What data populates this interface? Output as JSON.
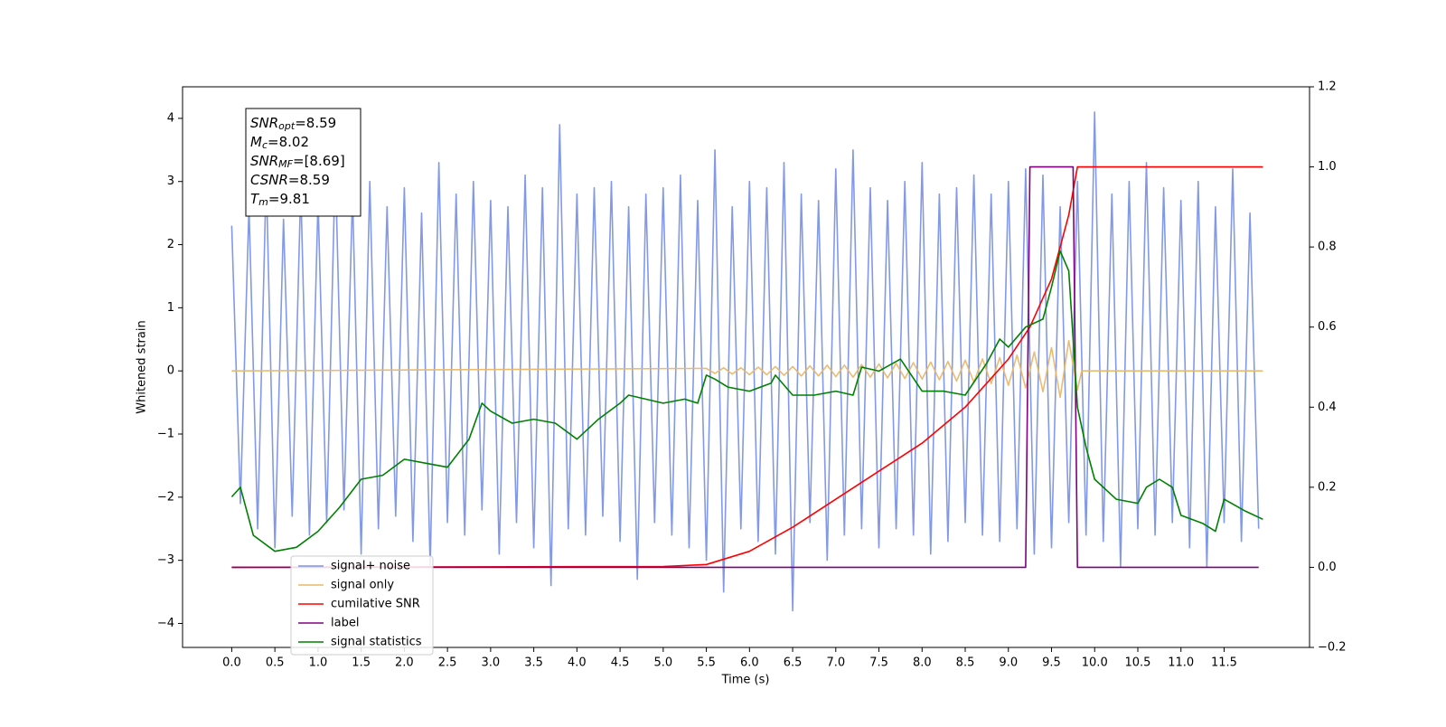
{
  "chart_data": {
    "type": "line",
    "xlabel": "Time (s)",
    "ylabel": "Whitened strain",
    "xlim": [
      -0.57,
      12.49
    ],
    "ylim": [
      -4.38,
      4.5
    ],
    "y2lim": [
      -0.2,
      1.2
    ],
    "xticks": [
      {
        "value": 0,
        "label": "0.0"
      },
      0.5,
      {
        "value": 1,
        "label": "1.0"
      },
      1.5,
      {
        "value": 2,
        "label": "2.0"
      },
      2.5,
      {
        "value": 3,
        "label": "3.0"
      },
      3.5,
      {
        "value": 4,
        "label": "4.0"
      },
      4.5,
      {
        "value": 5,
        "label": "5.0"
      },
      5.5,
      {
        "value": 6,
        "label": "6.0"
      },
      6.5,
      {
        "value": 7,
        "label": "7.0"
      },
      7.5,
      {
        "value": 8,
        "label": "8.0"
      },
      8.5,
      {
        "value": 9,
        "label": "9.0"
      },
      9.5,
      {
        "value": 10,
        "label": "10.0"
      },
      10.5,
      {
        "value": 11,
        "label": "11.0"
      },
      11.5
    ],
    "yticks": [
      {
        "value": -4,
        "label": "−4"
      },
      {
        "value": -3,
        "label": "−3"
      },
      {
        "value": -2,
        "label": "−2"
      },
      {
        "value": -1,
        "label": "−1"
      },
      0,
      1,
      2,
      3,
      4
    ],
    "y2ticks": [
      {
        "value": -0.2,
        "label": "−0.2"
      },
      {
        "value": 0,
        "label": "0.0"
      },
      0.2,
      0.4,
      0.6,
      0.8,
      {
        "value": 1,
        "label": "1.0"
      },
      1.2
    ],
    "annotations": [
      {
        "symbol": "SNR",
        "subscript": "opt",
        "text": "=8.59"
      },
      {
        "symbol": "M",
        "subscript": "c",
        "text": "=8.02"
      },
      {
        "symbol": "SNR",
        "subscript": "MF",
        "text": "=[8.69]"
      },
      {
        "symbol": "CSNR",
        "text": "=8.59"
      },
      {
        "symbol": "T",
        "subscript": "m",
        "text": "=9.81"
      }
    ],
    "series": [
      {
        "name": "signal+ noise",
        "color": "#7b94e6",
        "axis": "y",
        "x": [
          0,
          0.1,
          0.2,
          0.3,
          0.4,
          0.5,
          0.6,
          0.7,
          0.8,
          0.9,
          1,
          1.1,
          1.2,
          1.3,
          1.4,
          1.5,
          1.6,
          1.7,
          1.8,
          1.9,
          2,
          2.1,
          2.2,
          2.3,
          2.4,
          2.5,
          2.6,
          2.7,
          2.8,
          2.9,
          3,
          3.1,
          3.2,
          3.3,
          3.4,
          3.5,
          3.6,
          3.7,
          3.8,
          3.9,
          4,
          4.1,
          4.2,
          4.3,
          4.4,
          4.5,
          4.6,
          4.7,
          4.8,
          4.9,
          5,
          5.1,
          5.2,
          5.3,
          5.4,
          5.5,
          5.6,
          5.7,
          5.8,
          5.9,
          6,
          6.1,
          6.2,
          6.3,
          6.4,
          6.5,
          6.6,
          6.7,
          6.8,
          6.9,
          7,
          7.1,
          7.2,
          7.3,
          7.4,
          7.5,
          7.6,
          7.7,
          7.8,
          7.9,
          8,
          8.1,
          8.2,
          8.3,
          8.4,
          8.5,
          8.6,
          8.7,
          8.8,
          8.9,
          9,
          9.1,
          9.2,
          9.3,
          9.4,
          9.5,
          9.6,
          9.7,
          9.8,
          9.9,
          10,
          10.1,
          10.2,
          10.3,
          10.4,
          10.5,
          10.6,
          10.7,
          10.8,
          10.9,
          11,
          11.1,
          11.2,
          11.3,
          11.4,
          11.5,
          11.6,
          11.7,
          11.8,
          11.9
        ],
        "values": [
          2.3,
          -2.1,
          2.6,
          -2.5,
          3.1,
          -2.8,
          2.4,
          -2.3,
          2.9,
          -2.6,
          2.7,
          -2.4,
          3.3,
          -2.2,
          2.8,
          -2.9,
          3.0,
          -2.5,
          2.6,
          -2.3,
          2.9,
          -2.7,
          2.5,
          -3.1,
          3.3,
          -2.4,
          2.8,
          -2.6,
          3.0,
          -2.2,
          2.7,
          -2.9,
          2.6,
          -2.4,
          3.1,
          -2.8,
          2.9,
          -3.4,
          3.9,
          -2.5,
          2.8,
          -2.6,
          2.9,
          -2.3,
          3.0,
          -2.7,
          2.6,
          -3.3,
          2.8,
          -2.4,
          2.9,
          -2.6,
          3.1,
          -2.8,
          2.7,
          -3.0,
          3.5,
          -3.5,
          2.6,
          -2.5,
          3.0,
          -2.7,
          2.9,
          -2.9,
          3.3,
          -3.8,
          2.8,
          -2.4,
          2.7,
          -3.0,
          3.2,
          -2.6,
          3.5,
          -2.5,
          2.9,
          -2.8,
          2.7,
          -2.5,
          3.0,
          -2.6,
          3.3,
          -2.9,
          2.8,
          -2.7,
          2.9,
          -2.4,
          3.1,
          -2.6,
          2.8,
          -2.7,
          3.0,
          -2.5,
          3.2,
          -2.9,
          3.1,
          -2.8,
          2.6,
          -2.4,
          3.0,
          -2.6,
          4.1,
          -2.7,
          2.8,
          -3.1,
          3.0,
          -2.5,
          3.3,
          -2.6,
          2.9,
          -2.4,
          2.7,
          -2.8,
          3.0,
          -3.1,
          2.6,
          -2.4,
          3.2,
          -2.7,
          2.5,
          -2.5
        ]
      },
      {
        "name": "signal only",
        "color": "#e8b86a",
        "axis": "y",
        "x": [
          0,
          5.5,
          5.6,
          5.7,
          5.8,
          5.9,
          6,
          6.1,
          6.2,
          6.3,
          6.4,
          6.5,
          6.6,
          6.7,
          6.8,
          6.9,
          7,
          7.1,
          7.2,
          7.3,
          7.4,
          7.5,
          7.6,
          7.7,
          7.8,
          7.9,
          8,
          8.1,
          8.2,
          8.3,
          8.4,
          8.5,
          8.6,
          8.7,
          8.8,
          8.9,
          9,
          9.1,
          9.2,
          9.3,
          9.4,
          9.5,
          9.6,
          9.7,
          9.8,
          9.85,
          11.95
        ],
        "values": [
          0,
          0.04,
          -0.04,
          0.05,
          -0.05,
          0.05,
          -0.06,
          0.06,
          -0.06,
          0.07,
          -0.07,
          0.07,
          -0.08,
          0.08,
          -0.08,
          0.09,
          -0.09,
          0.09,
          -0.1,
          0.1,
          -0.1,
          0.11,
          -0.11,
          0.12,
          -0.12,
          0.13,
          -0.13,
          0.14,
          -0.14,
          0.15,
          -0.16,
          0.17,
          -0.18,
          0.19,
          -0.2,
          0.21,
          -0.23,
          0.25,
          -0.27,
          0.3,
          -0.33,
          0.37,
          -0.42,
          0.48,
          -0.3,
          0,
          0
        ]
      },
      {
        "name": "cumilative SNR",
        "color": "#ff0000",
        "axis": "y2",
        "x": [
          0,
          5,
          5.5,
          6,
          6.5,
          7,
          7.5,
          8,
          8.5,
          9,
          9.25,
          9.5,
          9.7,
          9.8,
          11.95
        ],
        "values": [
          0,
          0.002,
          0.007,
          0.04,
          0.1,
          0.17,
          0.24,
          0.31,
          0.4,
          0.52,
          0.6,
          0.72,
          0.88,
          1,
          1
        ]
      },
      {
        "name": "label",
        "color": "#800080",
        "axis": "y2",
        "x": [
          0,
          9.2,
          9.25,
          9.75,
          9.8,
          11.9
        ],
        "values": [
          0,
          0,
          1,
          1,
          0,
          0
        ]
      },
      {
        "name": "signal statistics",
        "color": "#008000",
        "axis": "y2",
        "x": [
          0,
          0.1,
          0.25,
          0.5,
          0.75,
          1,
          1.25,
          1.5,
          1.75,
          2,
          2.25,
          2.5,
          2.75,
          2.9,
          3,
          3.25,
          3.5,
          3.75,
          4,
          4.25,
          4.5,
          4.6,
          5,
          5.25,
          5.4,
          5.5,
          5.6,
          5.75,
          6,
          6.25,
          6.3,
          6.5,
          6.75,
          7,
          7.2,
          7.3,
          7.5,
          7.75,
          8,
          8.25,
          8.5,
          8.75,
          8.9,
          9,
          9.2,
          9.4,
          9.5,
          9.6,
          9.7,
          9.8,
          9.9,
          10,
          10.25,
          10.5,
          10.6,
          10.75,
          10.9,
          11,
          11.25,
          11.4,
          11.5,
          11.75,
          11.95
        ],
        "values": [
          0.176,
          0.2,
          0.08,
          0.04,
          0.05,
          0.09,
          0.15,
          0.22,
          0.23,
          0.27,
          0.26,
          0.25,
          0.32,
          0.41,
          0.39,
          0.36,
          0.37,
          0.36,
          0.32,
          0.37,
          0.41,
          0.43,
          0.41,
          0.42,
          0.41,
          0.48,
          0.47,
          0.45,
          0.44,
          0.46,
          0.48,
          0.43,
          0.43,
          0.44,
          0.43,
          0.5,
          0.49,
          0.52,
          0.44,
          0.44,
          0.43,
          0.51,
          0.57,
          0.55,
          0.6,
          0.62,
          0.7,
          0.79,
          0.74,
          0.4,
          0.3,
          0.22,
          0.17,
          0.16,
          0.2,
          0.22,
          0.2,
          0.13,
          0.11,
          0.09,
          0.17,
          0.14,
          0.12
        ]
      }
    ]
  }
}
